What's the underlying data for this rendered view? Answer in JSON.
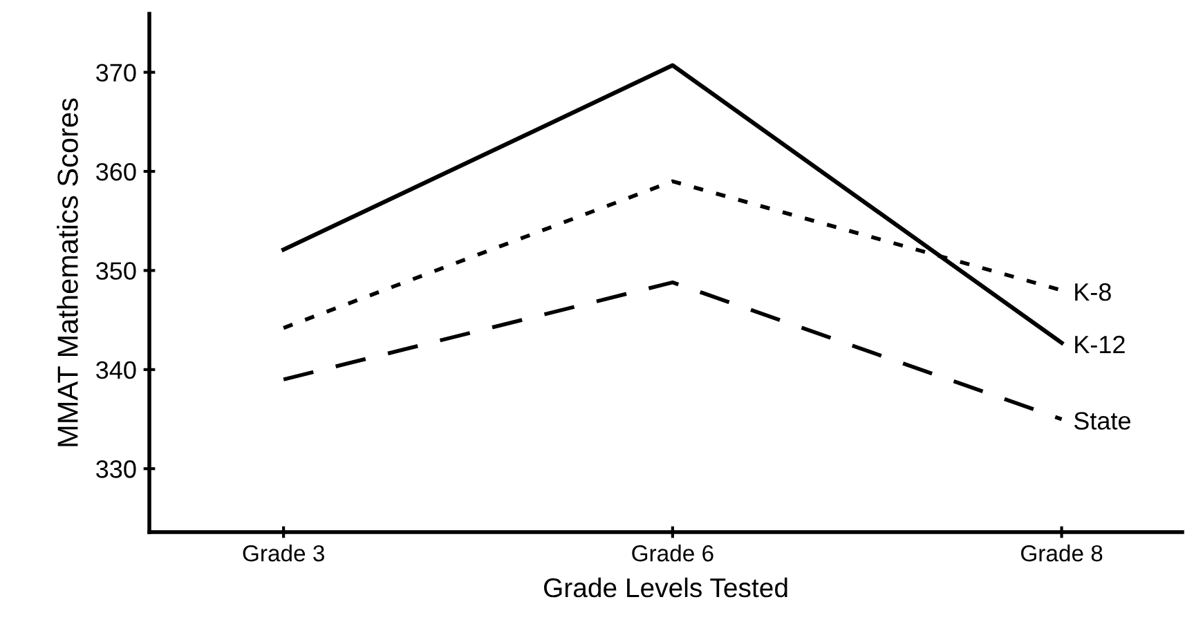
{
  "chart_data": {
    "type": "line",
    "xlabel": "Grade Levels Tested",
    "ylabel": "MMAT Mathematics Scores",
    "categories": [
      "Grade 3",
      "Grade 6",
      "Grade 8"
    ],
    "series": [
      {
        "name": "K-12",
        "color": "#000000",
        "line_style": "solid",
        "values": [
          352.1,
          370.7,
          342.7
        ]
      },
      {
        "name": "K-8",
        "color": "#000000",
        "line_style": "dotted",
        "values": [
          344.2,
          359.0,
          348.0
        ]
      },
      {
        "name": "State",
        "color": "#000000",
        "line_style": "dashed",
        "values": [
          339.0,
          348.8,
          335.0
        ]
      }
    ],
    "ylim": [
      323.6,
      375.9
    ],
    "yticks": [
      330,
      340,
      350,
      360,
      370
    ],
    "grid": false,
    "legend": false,
    "marker": "none"
  }
}
